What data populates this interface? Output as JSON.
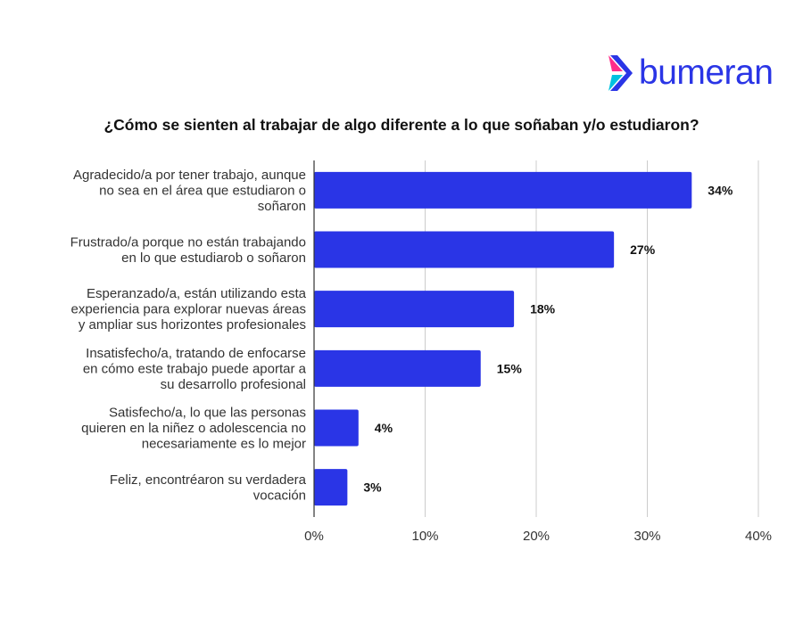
{
  "brand": {
    "name": "bumeran",
    "logo_icon": "bumeran-chevron-icon",
    "color": "#2a35e6",
    "accent_colors": [
      "#ff2d8a",
      "#00c2e0"
    ]
  },
  "chart_data": {
    "type": "bar",
    "orientation": "horizontal",
    "title": "¿Cómo se sienten al trabajar de algo diferente a lo que soñaban y/o estudiaron?",
    "categories": [
      [
        "Agradecido/a por tener trabajo, aunque",
        "no sea en el área que estudiaron o",
        "soñaron"
      ],
      [
        "Frustrado/a porque no están trabajando",
        "en lo que estudiarob o soñaron"
      ],
      [
        "Esperanzado/a, están utilizando esta",
        "experiencia para explorar nuevas áreas",
        "y ampliar sus horizontes profesionales"
      ],
      [
        "Insatisfecho/a, tratando de enfocarse",
        "en cómo este trabajo puede aportar a",
        "su desarrollo profesional"
      ],
      [
        "Satisfecho/a, lo que las personas",
        "quieren en la niñez o adolescencia no",
        "necesariamente es lo mejor"
      ],
      [
        "Feliz, encontréaron su verdadera",
        "vocación"
      ]
    ],
    "values": [
      34,
      27,
      18,
      15,
      4,
      3
    ],
    "value_labels": [
      "34%",
      "27%",
      "18%",
      "15%",
      "4%",
      "3%"
    ],
    "xlim": [
      0,
      40
    ],
    "ticks": [
      0,
      10,
      20,
      30,
      40
    ],
    "tick_labels": [
      "0%",
      "10%",
      "20%",
      "30%",
      "40%"
    ],
    "bar_color": "#2a35e6",
    "grid": true,
    "legend": "none",
    "xlabel": "",
    "ylabel": ""
  }
}
